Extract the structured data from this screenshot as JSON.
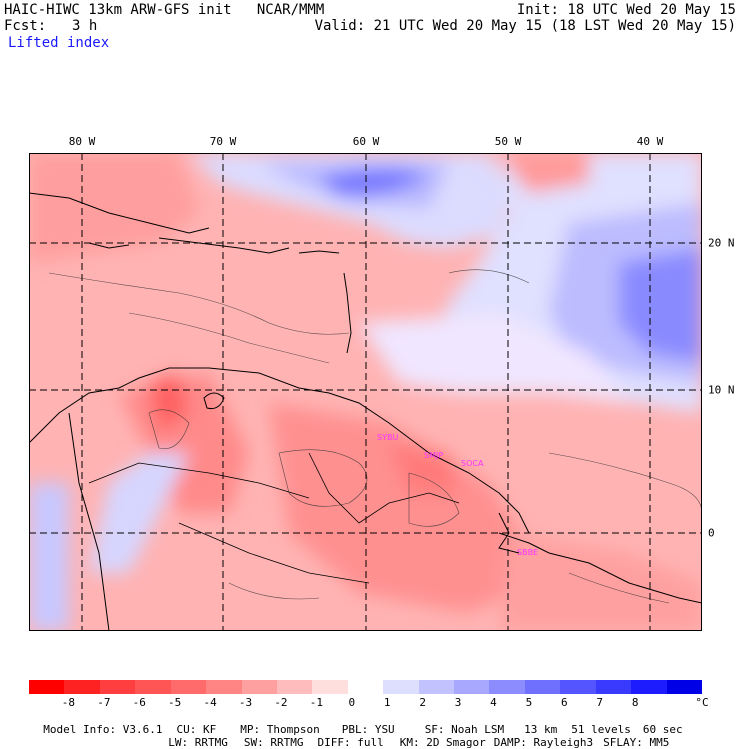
{
  "header": {
    "title": "HAIC-HIWC 13km ARW-GFS init   NCAR/MMM",
    "init": "Init: 18 UTC Wed 20 May 15",
    "fcst_label": "Fcst:",
    "fcst_value": "3 h",
    "valid": "Valid: 21 UTC Wed 20 May 15 (18 LST Wed 20 May 15)",
    "field": "Lifted index"
  },
  "map": {
    "lon_labels": [
      "80 W",
      "70 W",
      "60 W",
      "50 W",
      "40 W"
    ],
    "lat_labels": [
      "20 N",
      "10 N",
      "0"
    ],
    "stations": [
      "SYBU",
      "SMJP",
      "SOCA",
      "SBBE"
    ]
  },
  "colorbar": {
    "colors": [
      "#ff0000",
      "#ff2222",
      "#ff3f3f",
      "#ff5555",
      "#ff6b6b",
      "#ff8585",
      "#ffa0a0",
      "#ffbcbc",
      "#ffdede",
      "#ffffff",
      "#dedeff",
      "#c2c2ff",
      "#a8a8ff",
      "#8c8cff",
      "#7070ff",
      "#5555ff",
      "#3a3aff",
      "#1c1cff",
      "#0000e6"
    ],
    "ticks": [
      "-8",
      "-7",
      "-6",
      "-5",
      "-4",
      "-3",
      "-2",
      "-1",
      "0",
      "1",
      "2",
      "3",
      "4",
      "5",
      "6",
      "7",
      "8"
    ],
    "units": "°C"
  },
  "footer": {
    "line1": [
      "Model Info: V3.6.1",
      "CU: KF",
      "MP: Thompson",
      "PBL: YSU",
      "SF: Noah LSM",
      "13 km",
      "51 levels",
      "60 sec"
    ],
    "line2": [
      "LW: RRTMG",
      "SW: RRTMG",
      "DIFF: full",
      "KM: 2D Smagor",
      "DAMP: Rayleigh3",
      "SFLAY: MM5"
    ]
  }
}
